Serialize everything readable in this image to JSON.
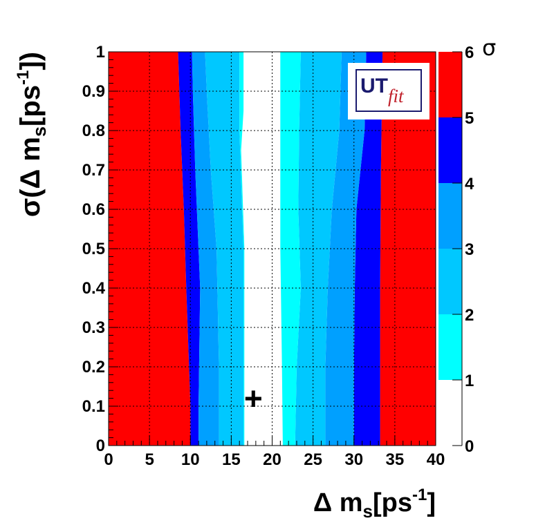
{
  "chart_data": {
    "type": "heatmap",
    "title": "",
    "xlabel": {
      "main": "Δ m",
      "sub": "s",
      "unit_open": "[ps",
      "sup": "-1",
      "unit_close": "]"
    },
    "ylabel": {
      "open": "σ(Δ m",
      "sub": "s",
      "unit_open": "[ps",
      "sup": "-1",
      "unit_close": "])"
    },
    "xlim": [
      0,
      40
    ],
    "ylim": [
      0,
      1
    ],
    "x_ticks": [
      "0",
      "5",
      "10",
      "15",
      "20",
      "25",
      "30",
      "35",
      "40"
    ],
    "y_ticks": [
      "0",
      "0.1",
      "0.2",
      "0.3",
      "0.4",
      "0.5",
      "0.6",
      "0.7",
      "0.8",
      "0.9",
      "1"
    ],
    "grid": true,
    "colorbar": {
      "title": "σ",
      "ticks": [
        "0",
        "1",
        "2",
        "3",
        "4",
        "5",
        "6"
      ],
      "bands": [
        {
          "from": 0,
          "to": 1,
          "color": "#ffffff"
        },
        {
          "from": 1,
          "to": 2,
          "color": "#00ffff"
        },
        {
          "from": 2,
          "to": 3,
          "color": "#00c8ff"
        },
        {
          "from": 3,
          "to": 4,
          "color": "#00a0ff"
        },
        {
          "from": 4,
          "to": 5,
          "color": "#0000ff"
        },
        {
          "from": 5,
          "to": 6,
          "color": "#ff0000"
        }
      ]
    },
    "regions": [
      {
        "level": 5,
        "points": [
          [
            0,
            0
          ],
          [
            10,
            0
          ],
          [
            10,
            0.1
          ],
          [
            9.5,
            0.4
          ],
          [
            9.2,
            0.6
          ],
          [
            8.8,
            0.8
          ],
          [
            8.5,
            1
          ],
          [
            0,
            1
          ]
        ]
      },
      {
        "level": 5,
        "points": [
          [
            33.2,
            0
          ],
          [
            40,
            0
          ],
          [
            40,
            1
          ],
          [
            33.5,
            1
          ],
          [
            33.3,
            0.7
          ],
          [
            33.2,
            0.4
          ]
        ]
      },
      {
        "level": 4,
        "points": [
          [
            10,
            0
          ],
          [
            11,
            0
          ],
          [
            11,
            0.1
          ],
          [
            11.2,
            0.4
          ],
          [
            10.6,
            0.7
          ],
          [
            10.3,
            0.9
          ],
          [
            10.2,
            1
          ],
          [
            8.5,
            1
          ],
          [
            8.8,
            0.8
          ],
          [
            9.2,
            0.6
          ],
          [
            9.5,
            0.4
          ],
          [
            10,
            0.1
          ]
        ]
      },
      {
        "level": 4,
        "points": [
          [
            30,
            0
          ],
          [
            33.2,
            0
          ],
          [
            33.2,
            0.4
          ],
          [
            33.3,
            0.7
          ],
          [
            33.5,
            1
          ],
          [
            31.5,
            1
          ],
          [
            31.3,
            0.8
          ],
          [
            30.8,
            0.7
          ],
          [
            30.3,
            0.6
          ],
          [
            30.1,
            0.4
          ],
          [
            30,
            0.2
          ]
        ]
      },
      {
        "level": 3,
        "points": [
          [
            11,
            0
          ],
          [
            13.5,
            0
          ],
          [
            13.5,
            0.2
          ],
          [
            13.2,
            0.5
          ],
          [
            12.5,
            0.7
          ],
          [
            12,
            0.9
          ],
          [
            11.8,
            1
          ],
          [
            10.2,
            1
          ],
          [
            10.3,
            0.9
          ],
          [
            10.6,
            0.7
          ],
          [
            11.2,
            0.4
          ],
          [
            11,
            0.1
          ]
        ]
      },
      {
        "level": 3,
        "points": [
          [
            26.5,
            0
          ],
          [
            30,
            0
          ],
          [
            30,
            0.2
          ],
          [
            30.1,
            0.4
          ],
          [
            30.3,
            0.6
          ],
          [
            30.8,
            0.7
          ],
          [
            31.3,
            0.8
          ],
          [
            31.5,
            1
          ],
          [
            28.5,
            1
          ],
          [
            28.2,
            0.8
          ],
          [
            27.3,
            0.6
          ],
          [
            26.8,
            0.4
          ],
          [
            26.5,
            0.2
          ]
        ]
      },
      {
        "level": 2,
        "points": [
          [
            13.5,
            0
          ],
          [
            16.5,
            0
          ],
          [
            16.5,
            0.5
          ],
          [
            16,
            0.8
          ],
          [
            16,
            1
          ],
          [
            11.8,
            1
          ],
          [
            12,
            0.9
          ],
          [
            12.5,
            0.7
          ],
          [
            13.2,
            0.5
          ],
          [
            13.5,
            0.2
          ]
        ]
      },
      {
        "level": 2,
        "points": [
          [
            22.8,
            0
          ],
          [
            26.5,
            0
          ],
          [
            26.5,
            0.2
          ],
          [
            26.8,
            0.4
          ],
          [
            27.3,
            0.6
          ],
          [
            28.2,
            0.8
          ],
          [
            28.5,
            1
          ],
          [
            23.5,
            1
          ],
          [
            23.3,
            0.8
          ],
          [
            23.2,
            0.6
          ],
          [
            23.5,
            0.4
          ],
          [
            23,
            0.2
          ]
        ]
      },
      {
        "level": 1,
        "points": [
          [
            16.5,
            0
          ],
          [
            16.5,
            0.5
          ],
          [
            16,
            0.8
          ],
          [
            16,
            1
          ],
          [
            16.5,
            1
          ],
          [
            16.5,
            0.85
          ],
          [
            16.2,
            0.75
          ],
          [
            16.6,
            0.5
          ],
          [
            16.6,
            0
          ]
        ]
      },
      {
        "level": 1,
        "points": [
          [
            21.3,
            0
          ],
          [
            22.8,
            0
          ],
          [
            23,
            0.2
          ],
          [
            23.5,
            0.4
          ],
          [
            23.2,
            0.6
          ],
          [
            23.3,
            0.8
          ],
          [
            23.5,
            1
          ],
          [
            21,
            1
          ],
          [
            21,
            0.8
          ],
          [
            21,
            0.5
          ],
          [
            21.2,
            0.2
          ]
        ]
      }
    ],
    "marker": {
      "symbol": "+",
      "x": 17.7,
      "y": 0.12
    },
    "logo": {
      "text_main": "UT",
      "text_sub": "fit"
    }
  }
}
